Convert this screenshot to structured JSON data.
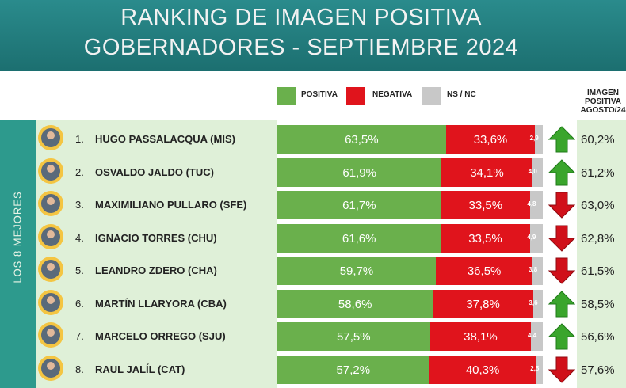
{
  "header": {
    "title_line1": "RANKING DE IMAGEN POSITIVA",
    "title_line2": "GOBERNADORES - SEPTIEMBRE 2024"
  },
  "legend": {
    "positiva": "POSITIVA",
    "negativa": "NEGATIVA",
    "nsnc": "NS / NC"
  },
  "colors": {
    "positiva": "#6ab04c",
    "negativa": "#e0141c",
    "nsnc": "#c8c8c8",
    "arrow_up": "#3aa52c",
    "arrow_down": "#d0101a"
  },
  "previous_header": [
    "IMAGEN",
    "POSITIVA",
    "AGOSTO/24"
  ],
  "side_label": "LOS 8 MEJORES",
  "chart_data": {
    "type": "bar",
    "stacked": true,
    "orientation": "horizontal",
    "title": "RANKING DE IMAGEN POSITIVA GOBERNADORES - SEPTIEMBRE 2024",
    "categories": [
      "HUGO PASSALACQUA (MIS)",
      "OSVALDO JALDO (TUC)",
      "MAXIMILIANO PULLARO (SFE)",
      "IGNACIO TORRES (CHU)",
      "LEANDRO ZDERO (CHA)",
      "MARTÍN LLARYORA (CBA)",
      "MARCELO ORREGO (SJU)",
      "RAUL JALÍL (CAT)"
    ],
    "series": [
      {
        "name": "POSITIVA",
        "values": [
          63.5,
          61.9,
          61.7,
          61.6,
          59.7,
          58.6,
          57.5,
          57.2
        ],
        "labels": [
          "63,5%",
          "61,9%",
          "61,7%",
          "61,6%",
          "59,7%",
          "58,6%",
          "57,5%",
          "57,2%"
        ]
      },
      {
        "name": "NEGATIVA",
        "values": [
          33.6,
          34.1,
          33.5,
          33.5,
          36.5,
          37.8,
          38.1,
          40.3
        ],
        "labels": [
          "33,6%",
          "34,1%",
          "33,5%",
          "33,5%",
          "36,5%",
          "37,8%",
          "38,1%",
          "40,3%"
        ]
      },
      {
        "name": "NS / NC",
        "values": [
          2.9,
          4.0,
          4.8,
          4.9,
          3.8,
          3.6,
          4.4,
          2.5
        ],
        "labels": [
          "2,9",
          "4,0",
          "4,8",
          "4,9",
          "3,8",
          "3,6",
          "4,4",
          "2,5"
        ]
      }
    ],
    "ranks": [
      "1.",
      "2.",
      "3.",
      "4.",
      "5.",
      "6.",
      "7.",
      "8."
    ],
    "trend": [
      "up",
      "up",
      "down",
      "down",
      "down",
      "up",
      "up",
      "down"
    ],
    "previous": {
      "name": "IMAGEN POSITIVA AGOSTO/24",
      "values": [
        60.2,
        61.2,
        63.0,
        62.8,
        61.5,
        58.5,
        56.6,
        57.6
      ],
      "labels": [
        "60,2%",
        "61,2%",
        "63,0%",
        "62,8%",
        "61,5%",
        "58,5%",
        "56,6%",
        "57,6%"
      ]
    },
    "xlim": [
      0,
      100
    ]
  }
}
